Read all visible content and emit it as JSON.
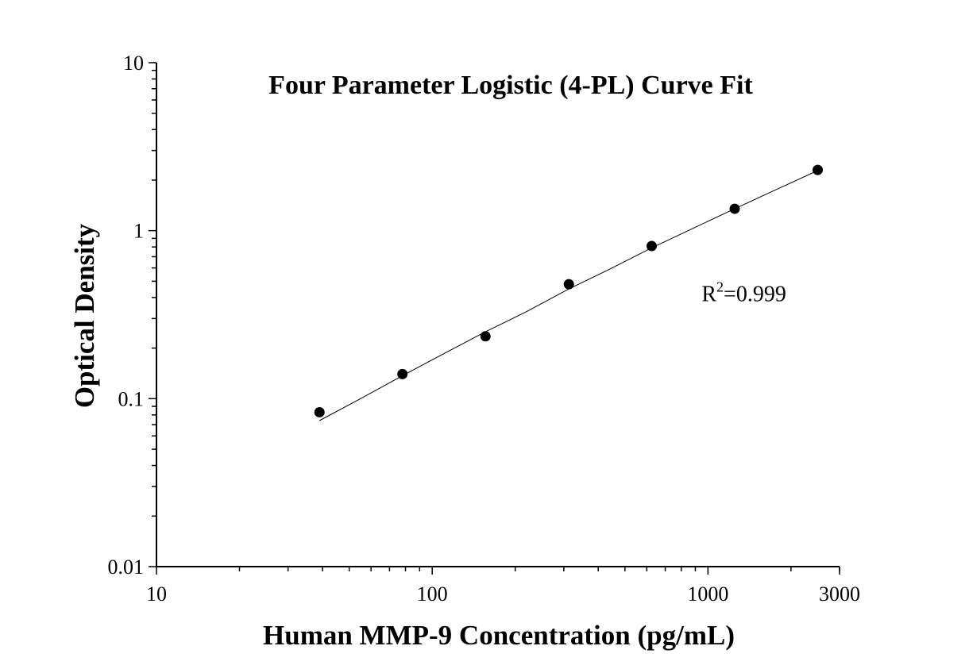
{
  "chart_data": {
    "type": "scatter",
    "title": "Four Parameter Logistic (4-PL) Curve Fit",
    "xlabel": "Human MMP-9 Concentration (pg/mL)",
    "ylabel": "Optical Density",
    "x_scale": "log",
    "y_scale": "log",
    "xlim": [
      10,
      3000
    ],
    "ylim": [
      0.01,
      10
    ],
    "x_ticks": [
      {
        "value": 10,
        "label": "10"
      },
      {
        "value": 100,
        "label": "100"
      },
      {
        "value": 1000,
        "label": "1000"
      },
      {
        "value": 3000,
        "label": "3000"
      }
    ],
    "y_ticks": [
      {
        "value": 0.01,
        "label": "0.01"
      },
      {
        "value": 0.1,
        "label": "0.1"
      },
      {
        "value": 1,
        "label": "1"
      },
      {
        "value": 10,
        "label": "10"
      }
    ],
    "grid": false,
    "points": {
      "x": [
        39,
        78,
        156,
        313,
        625,
        1250,
        2500
      ],
      "y": [
        0.083,
        0.14,
        0.235,
        0.48,
        0.81,
        1.35,
        2.3
      ]
    },
    "fit_curve": {
      "x": [
        39,
        55,
        78,
        110,
        156,
        220,
        313,
        440,
        625,
        880,
        1250,
        1760,
        2500
      ],
      "y": [
        0.074,
        0.1,
        0.137,
        0.185,
        0.25,
        0.33,
        0.45,
        0.59,
        0.79,
        1.03,
        1.35,
        1.75,
        2.28
      ]
    },
    "annotation": {
      "base": "R",
      "superscript": "2",
      "text": "=0.999",
      "x": 1000,
      "y": 0.38
    }
  }
}
